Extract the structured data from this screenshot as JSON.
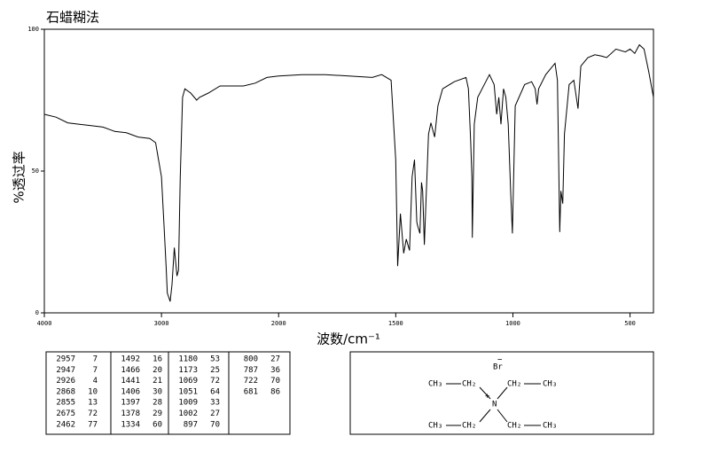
{
  "chart_data": {
    "type": "line",
    "title": "石蜡糊法",
    "x_label": "波数/cm⁻¹",
    "y_label": "%透过率",
    "xlim": [
      4000,
      400
    ],
    "ylim": [
      0,
      100
    ],
    "x_scale_change": 2000,
    "xticks": [
      4000,
      3000,
      2000,
      1500,
      1000,
      500
    ],
    "yticks": [
      0,
      50,
      100
    ],
    "color": "#000000",
    "x": [
      4000,
      3900,
      3800,
      3700,
      3600,
      3500,
      3400,
      3300,
      3200,
      3100,
      3050,
      3000,
      2980,
      2960,
      2950,
      2930,
      2926,
      2910,
      2890,
      2868,
      2855,
      2840,
      2820,
      2800,
      2750,
      2700,
      2675,
      2600,
      2500,
      2400,
      2300,
      2200,
      2100,
      2000,
      1900,
      1800,
      1700,
      1600,
      1560,
      1520,
      1500,
      1492,
      1480,
      1466,
      1455,
      1441,
      1430,
      1420,
      1410,
      1406,
      1397,
      1390,
      1385,
      1378,
      1360,
      1350,
      1334,
      1320,
      1300,
      1250,
      1200,
      1190,
      1180,
      1175,
      1173,
      1165,
      1150,
      1100,
      1080,
      1069,
      1060,
      1051,
      1040,
      1030,
      1020,
      1009,
      1002,
      990,
      950,
      920,
      905,
      897,
      890,
      860,
      820,
      810,
      800,
      795,
      787,
      780,
      760,
      740,
      722,
      710,
      680,
      650,
      620,
      600,
      560,
      520,
      500,
      480,
      460,
      440,
      420,
      400
    ],
    "values": [
      70,
      69,
      67,
      66.5,
      66,
      65.5,
      64,
      63.5,
      62,
      61.5,
      60,
      48,
      32,
      16,
      7,
      4.5,
      4,
      10,
      23,
      13,
      15,
      48,
      76,
      79,
      77.5,
      75,
      76,
      77.5,
      80,
      80,
      80,
      81,
      83,
      83.5,
      84,
      84,
      83.5,
      83,
      84,
      82,
      54,
      16.5,
      35,
      21,
      26,
      22,
      48,
      54,
      32,
      30.5,
      28,
      46,
      43,
      24,
      63,
      67,
      62,
      73,
      79,
      81.5,
      83,
      79,
      60,
      48,
      26.5,
      66.5,
      76,
      84,
      80.5,
      70,
      76,
      66.5,
      79,
      76,
      66.5,
      41.5,
      28,
      73,
      80.5,
      81.5,
      79,
      73.5,
      79,
      84,
      88,
      82,
      28.5,
      43,
      38.5,
      63,
      80.5,
      82,
      72,
      87,
      90,
      91,
      90.5,
      90,
      93,
      92,
      93,
      91.5,
      94.5,
      93,
      85,
      76
    ]
  },
  "peak_table": {
    "columns": [
      [
        [
          2957,
          7
        ],
        [
          2947,
          7
        ],
        [
          2926,
          4
        ],
        [
          2868,
          10
        ],
        [
          2855,
          13
        ],
        [
          2675,
          72
        ],
        [
          2462,
          77
        ]
      ],
      [
        [
          1492,
          16
        ],
        [
          1466,
          20
        ],
        [
          1441,
          21
        ],
        [
          1406,
          30
        ],
        [
          1397,
          28
        ],
        [
          1378,
          29
        ],
        [
          1334,
          60
        ]
      ],
      [
        [
          1180,
          53
        ],
        [
          1173,
          25
        ],
        [
          1069,
          72
        ],
        [
          1051,
          64
        ],
        [
          1009,
          33
        ],
        [
          1002,
          27
        ],
        [
          897,
          70
        ]
      ],
      [
        [
          800,
          27
        ],
        [
          787,
          36
        ],
        [
          722,
          70
        ],
        [
          681,
          86
        ]
      ]
    ]
  },
  "structure": {
    "anion": "Br",
    "anion_charge": "−",
    "nitrogen": "N",
    "cation_charge": "+",
    "groups": [
      [
        "CH₃",
        "CH₂"
      ],
      [
        "CH₂",
        "CH₃"
      ],
      [
        "CH₃",
        "CH₂"
      ],
      [
        "CH₂",
        "CH₃"
      ]
    ]
  }
}
